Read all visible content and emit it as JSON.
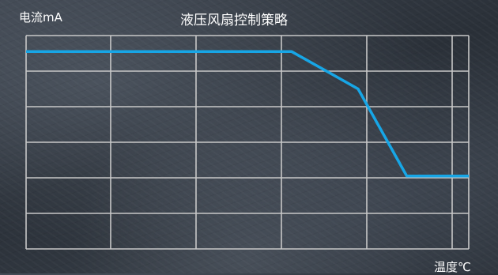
{
  "chart_data": {
    "type": "line",
    "title": "液压风扇控制策略",
    "ylabel": "电流mA",
    "xlabel": "温度℃",
    "grid": true,
    "xlim": [
      0,
      10
    ],
    "ylim": [
      0,
      6
    ],
    "series": [
      {
        "x": [
          0,
          6,
          7.5,
          8.6,
          10
        ],
        "y": [
          5.55,
          5.55,
          4.5,
          2.05,
          2.05
        ],
        "color": "#17a6e6"
      }
    ],
    "grid_color": "#c8c8c8"
  }
}
